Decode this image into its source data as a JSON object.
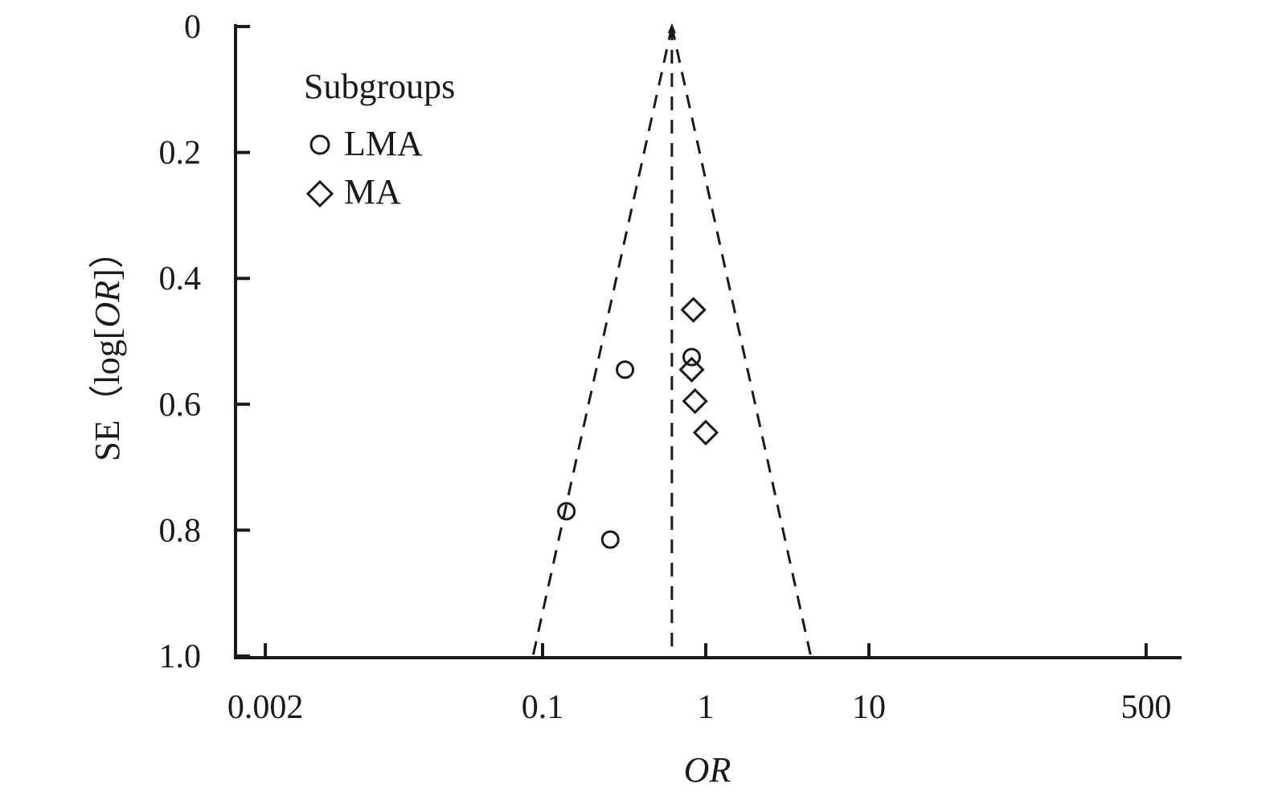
{
  "chart_data": {
    "type": "scatter",
    "x_axis": {
      "label": "OR",
      "scale": "log",
      "ticks": [
        0.002,
        0.1,
        1,
        10,
        500
      ],
      "tick_labels": [
        "0.002",
        "0.1",
        "1",
        "10",
        "500"
      ],
      "range": [
        0.0015,
        900
      ]
    },
    "y_axis": {
      "label_prefix": "SE（log[",
      "label_italic": "OR",
      "label_suffix": "]）",
      "ticks": [
        0,
        0.2,
        0.4,
        0.6,
        0.8,
        1.0
      ],
      "tick_labels": [
        "0",
        "0.2",
        "0.4",
        "0.6",
        "0.8",
        "1.0"
      ],
      "range": [
        0,
        1.0
      ],
      "inverted": true
    },
    "funnel": {
      "pooled_or": 0.62,
      "base_se": 1.0,
      "style": "dashed"
    },
    "legend": {
      "title": "Subgroups",
      "placement": "top-left",
      "entries": [
        {
          "label": "LMA",
          "marker": "circle"
        },
        {
          "label": "MA",
          "marker": "diamond"
        }
      ]
    },
    "series": [
      {
        "name": "LMA",
        "marker": "circle",
        "points": [
          {
            "x": 0.82,
            "y": 0.525
          },
          {
            "x": 0.32,
            "y": 0.545
          },
          {
            "x": 0.14,
            "y": 0.77
          },
          {
            "x": 0.26,
            "y": 0.815
          }
        ]
      },
      {
        "name": "MA",
        "marker": "diamond",
        "points": [
          {
            "x": 0.84,
            "y": 0.45
          },
          {
            "x": 0.82,
            "y": 0.545
          },
          {
            "x": 0.86,
            "y": 0.595
          },
          {
            "x": 1.0,
            "y": 0.645
          }
        ]
      }
    ]
  }
}
